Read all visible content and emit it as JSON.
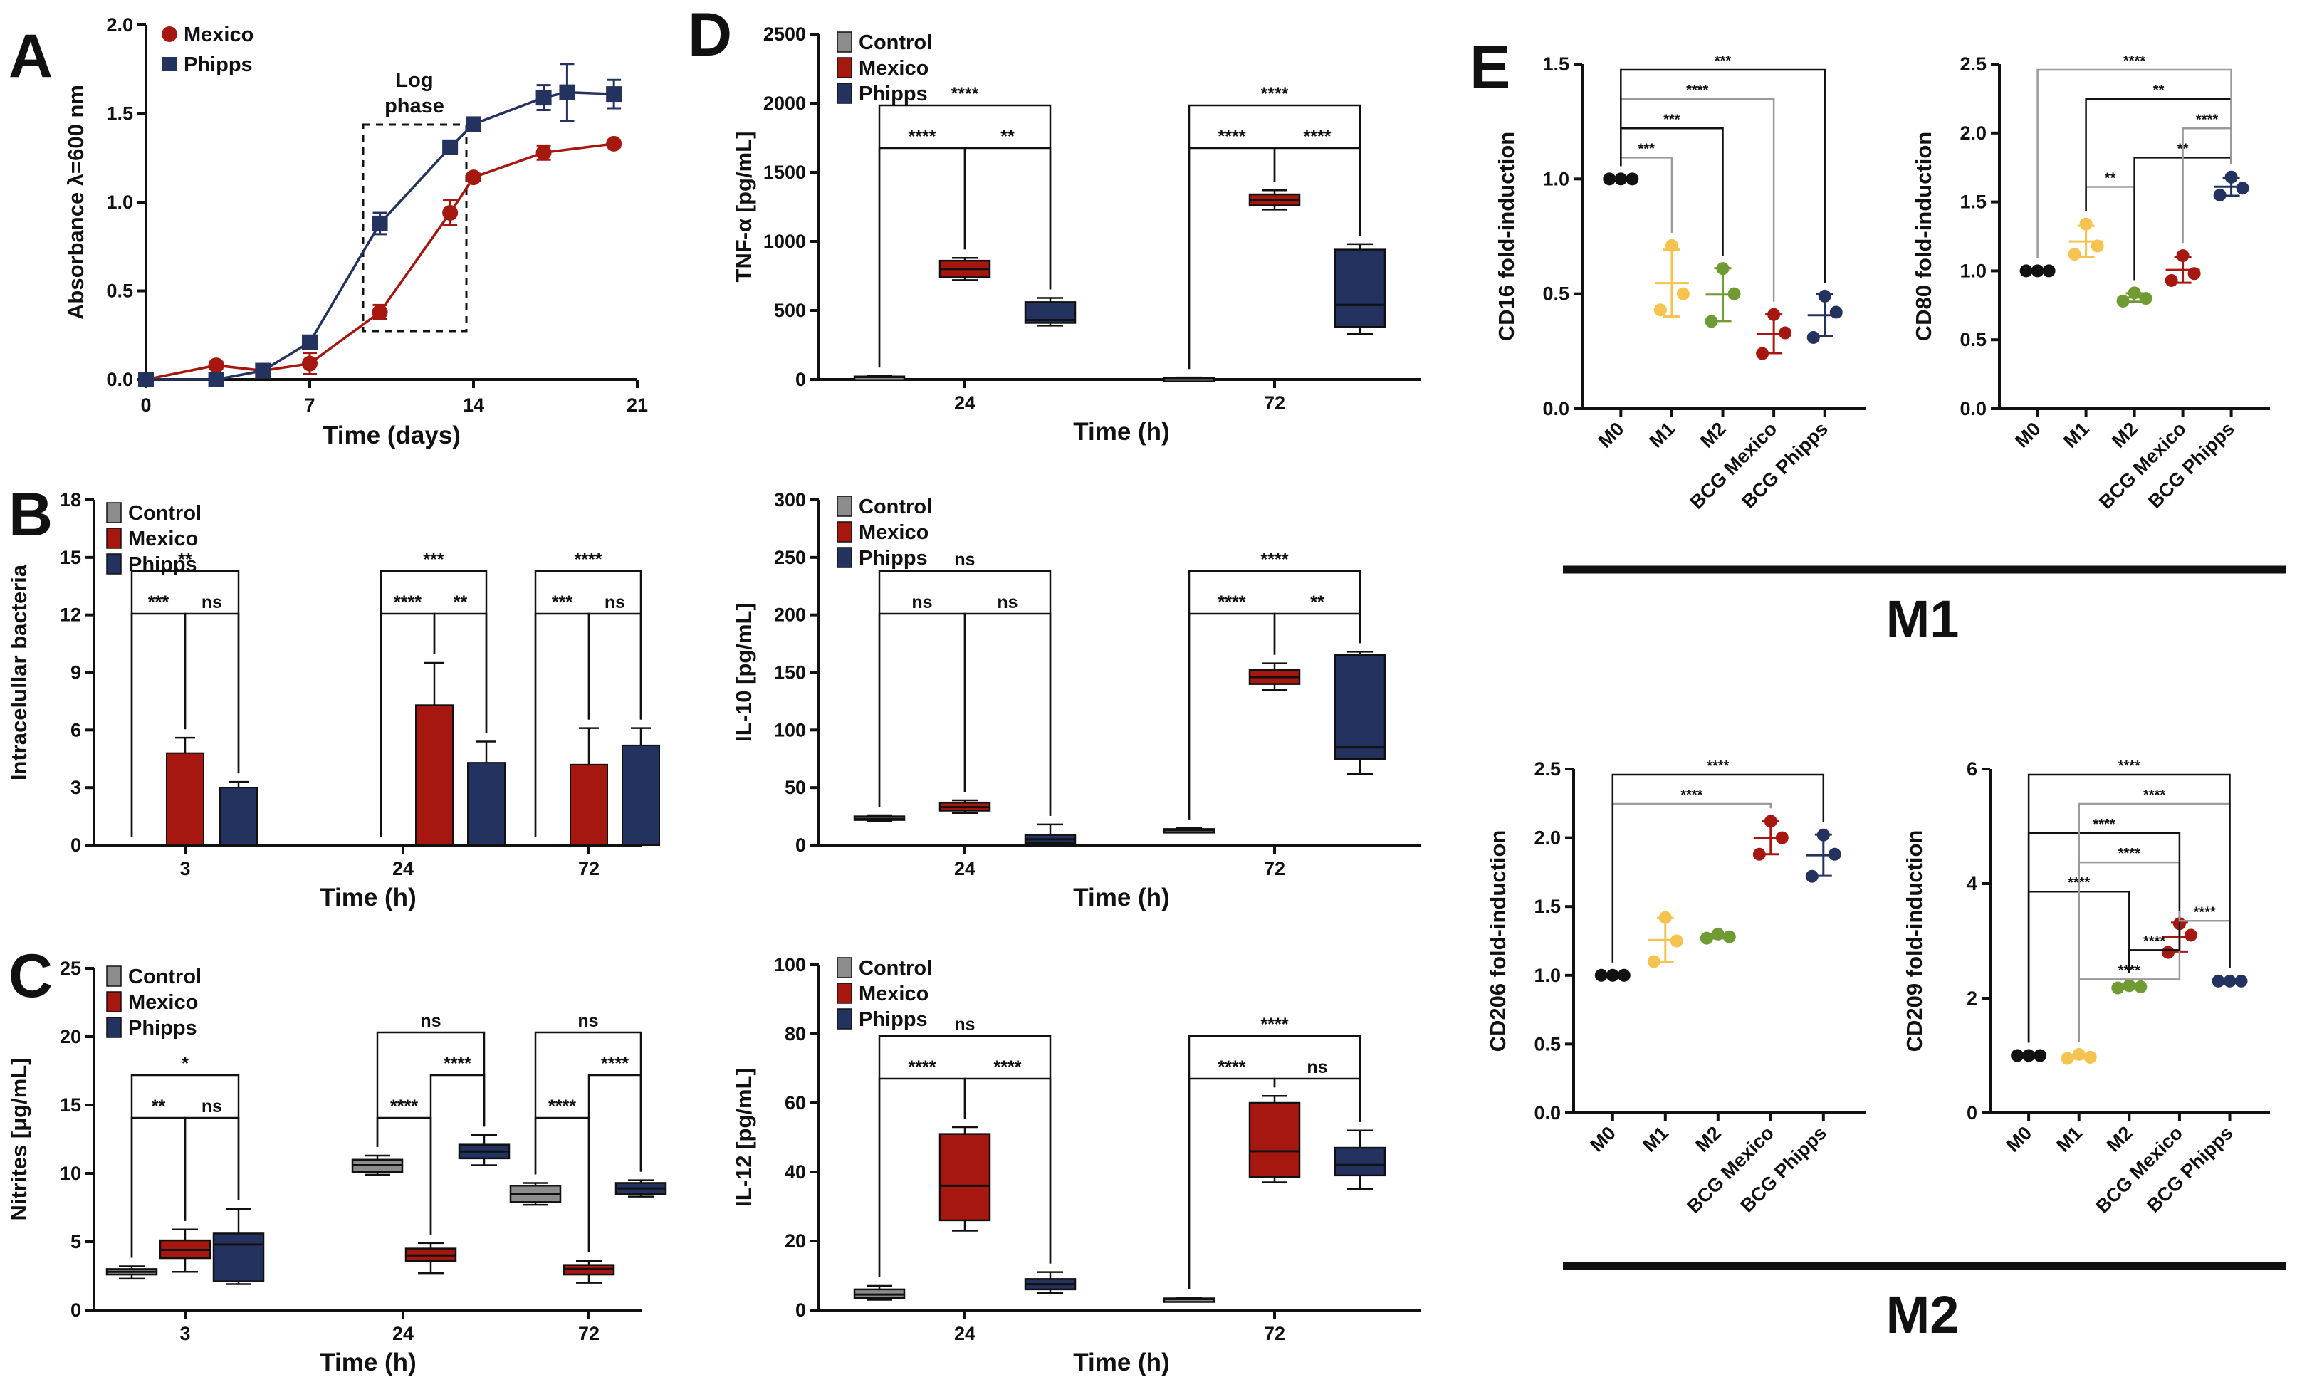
{
  "colors": {
    "control": "#8c8c8c",
    "mexico": "#a5170f",
    "phipps": "#23325f",
    "black": "#111111",
    "m1": "#f5c34f",
    "m2": "#6f9a34"
  },
  "labels": {
    "panel_a": "A",
    "panel_b": "B",
    "panel_c": "C",
    "panel_d": "D",
    "panel_e": "E",
    "legend_control": "Control",
    "legend_mexico": "Mexico",
    "legend_phipps": "Phipps",
    "log_phase_line1": "Log",
    "log_phase_line2": "phase",
    "m1_group": "M1",
    "m2_group": "M2"
  },
  "chart_data": [
    {
      "id": "A",
      "type": "line",
      "xlabel": "Time (days)",
      "ylabel": "Absorbance λ=600 nm",
      "xlim": [
        0,
        21
      ],
      "ylim": [
        0,
        2.0
      ],
      "xticks": [
        0,
        7,
        14,
        21
      ],
      "xtick_labels": [
        "0",
        "7",
        "14",
        "21"
      ],
      "yticks": [
        0,
        0.5,
        1.0,
        1.5,
        2.0
      ],
      "ytick_labels": [
        "0.0",
        "0.5",
        "1.0",
        "1.5",
        "2.0"
      ],
      "series": [
        {
          "name": "Mexico",
          "x": [
            0,
            3,
            5,
            7,
            10,
            13,
            14,
            17,
            20
          ],
          "y": [
            0.0,
            0.08,
            0.05,
            0.09,
            0.38,
            0.94,
            1.14,
            1.28,
            1.33
          ],
          "err": [
            0,
            0.02,
            0.01,
            0.06,
            0.04,
            0.07,
            0.02,
            0.04,
            0.02
          ]
        },
        {
          "name": "Phipps",
          "x": [
            0,
            3,
            5,
            7,
            10,
            13,
            14,
            17,
            18,
            20
          ],
          "y": [
            0.0,
            0.0,
            0.05,
            0.21,
            0.88,
            1.31,
            1.44,
            1.59,
            1.62,
            1.61
          ],
          "err": [
            0,
            0,
            0.01,
            0.02,
            0.06,
            0.03,
            0.03,
            0.07,
            0.16,
            0.08
          ]
        }
      ]
    },
    {
      "id": "B",
      "type": "bar",
      "xlabel": "Time (h)",
      "ylabel": "Intracelullar bacteria",
      "ylim": [
        0,
        18
      ],
      "yticks": [
        0,
        3,
        6,
        9,
        12,
        15,
        18
      ],
      "categories": [
        "3",
        "24",
        "72"
      ],
      "series": [
        {
          "name": "Control",
          "values": [
            0,
            0,
            0
          ],
          "err": [
            0,
            0,
            0
          ]
        },
        {
          "name": "Mexico",
          "values": [
            4.8,
            7.3,
            4.2
          ],
          "err": [
            0.8,
            2.2,
            1.9
          ]
        },
        {
          "name": "Phipps",
          "values": [
            3.0,
            4.3,
            5.2
          ],
          "err": [
            0.3,
            1.1,
            0.9
          ]
        }
      ],
      "significance": [
        {
          "group": "3",
          "a": 0,
          "b": 1,
          "label": "***",
          "level": 1
        },
        {
          "group": "3",
          "a": 1,
          "b": 2,
          "label": "ns",
          "level": 1
        },
        {
          "group": "3",
          "a": 0,
          "b": 2,
          "label": "**",
          "level": 2
        },
        {
          "group": "24",
          "a": 0,
          "b": 1,
          "label": "****",
          "level": 1
        },
        {
          "group": "24",
          "a": 1,
          "b": 2,
          "label": "**",
          "level": 1
        },
        {
          "group": "24",
          "a": 0,
          "b": 2,
          "label": "***",
          "level": 2
        },
        {
          "group": "72",
          "a": 0,
          "b": 1,
          "label": "***",
          "level": 1
        },
        {
          "group": "72",
          "a": 1,
          "b": 2,
          "label": "ns",
          "level": 1
        },
        {
          "group": "72",
          "a": 0,
          "b": 2,
          "label": "****",
          "level": 2
        }
      ]
    },
    {
      "id": "C",
      "type": "box",
      "xlabel": "Time (h)",
      "ylabel": "Nitrites [μg/mL]",
      "ylim": [
        0,
        25
      ],
      "yticks": [
        0,
        5,
        10,
        15,
        20,
        25
      ],
      "categories": [
        "3",
        "24",
        "72"
      ],
      "series": [
        {
          "name": "Control",
          "boxes": [
            [
              2.3,
              2.6,
              2.8,
              3.0,
              3.2
            ],
            [
              9.9,
              10.1,
              10.6,
              11.0,
              11.3
            ],
            [
              7.7,
              7.9,
              8.5,
              9.1,
              9.3
            ]
          ]
        },
        {
          "name": "Mexico",
          "boxes": [
            [
              2.8,
              3.8,
              4.4,
              5.1,
              5.9
            ],
            [
              2.7,
              3.6,
              4.0,
              4.5,
              4.9
            ],
            [
              2.0,
              2.6,
              3.0,
              3.3,
              3.6
            ]
          ]
        },
        {
          "name": "Phipps",
          "boxes": [
            [
              1.9,
              2.1,
              4.8,
              5.6,
              7.4
            ],
            [
              10.6,
              11.1,
              11.6,
              12.1,
              12.8
            ],
            [
              8.3,
              8.5,
              8.9,
              9.3,
              9.5
            ]
          ]
        }
      ],
      "significance": [
        {
          "group": "3",
          "a": 0,
          "b": 1,
          "label": "**",
          "level": 1
        },
        {
          "group": "3",
          "a": 1,
          "b": 2,
          "label": "ns",
          "level": 1
        },
        {
          "group": "3",
          "a": 0,
          "b": 2,
          "label": "*",
          "level": 2
        },
        {
          "group": "24",
          "a": 0,
          "b": 1,
          "label": "****",
          "level": 1
        },
        {
          "group": "24",
          "a": 1,
          "b": 2,
          "label": "****",
          "level": 2
        },
        {
          "group": "24",
          "a": 0,
          "b": 2,
          "label": "ns",
          "level": 3
        },
        {
          "group": "72",
          "a": 0,
          "b": 1,
          "label": "****",
          "level": 1
        },
        {
          "group": "72",
          "a": 1,
          "b": 2,
          "label": "****",
          "level": 2
        },
        {
          "group": "72",
          "a": 0,
          "b": 2,
          "label": "ns",
          "level": 3
        }
      ]
    },
    {
      "id": "D1",
      "type": "box",
      "xlabel": "Time (h)",
      "ylabel": "TNF-α [pg/mL]",
      "ylim": [
        0,
        2500
      ],
      "yticks": [
        0,
        500,
        1000,
        1500,
        2000,
        2500
      ],
      "categories": [
        "24",
        "72"
      ],
      "series": [
        {
          "name": "Control",
          "boxes": [
            [
              10,
              15,
              18,
              22,
              25
            ],
            [
              5,
              8,
              10,
              12,
              15
            ]
          ]
        },
        {
          "name": "Mexico",
          "boxes": [
            [
              720,
              740,
              800,
              860,
              880
            ],
            [
              1230,
              1260,
              1300,
              1340,
              1370
            ]
          ]
        },
        {
          "name": "Phipps",
          "boxes": [
            [
              390,
              410,
              430,
              560,
              590
            ],
            [
              330,
              380,
              540,
              940,
              980
            ]
          ]
        }
      ],
      "significance": [
        {
          "group": "24",
          "a": 0,
          "b": 1,
          "label": "****",
          "level": 1
        },
        {
          "group": "24",
          "a": 1,
          "b": 2,
          "label": "**",
          "level": 1
        },
        {
          "group": "24",
          "a": 0,
          "b": 2,
          "label": "****",
          "level": 2
        },
        {
          "group": "72",
          "a": 0,
          "b": 1,
          "label": "****",
          "level": 1
        },
        {
          "group": "72",
          "a": 1,
          "b": 2,
          "label": "****",
          "level": 1
        },
        {
          "group": "72",
          "a": 0,
          "b": 2,
          "label": "****",
          "level": 2
        }
      ]
    },
    {
      "id": "D2",
      "type": "box",
      "xlabel": "Time (h)",
      "ylabel": "IL-10 [pg/mL]",
      "ylim": [
        0,
        300
      ],
      "yticks": [
        0,
        50,
        100,
        150,
        200,
        250,
        300
      ],
      "categories": [
        "24",
        "72"
      ],
      "series": [
        {
          "name": "Control",
          "boxes": [
            [
              21,
              22,
              23,
              25,
              26
            ],
            [
              11,
              12,
              13,
              14,
              15
            ]
          ]
        },
        {
          "name": "Mexico",
          "boxes": [
            [
              28,
              30,
              33,
              37,
              39
            ],
            [
              135,
              140,
              146,
              152,
              158
            ]
          ]
        },
        {
          "name": "Phipps",
          "boxes": [
            [
              1,
              2,
              5,
              9,
              18
            ],
            [
              62,
              75,
              85,
              165,
              168
            ]
          ]
        }
      ],
      "significance": [
        {
          "group": "24",
          "a": 0,
          "b": 1,
          "label": "ns",
          "level": 1
        },
        {
          "group": "24",
          "a": 1,
          "b": 2,
          "label": "ns",
          "level": 1
        },
        {
          "group": "24",
          "a": 0,
          "b": 2,
          "label": "ns",
          "level": 2
        },
        {
          "group": "72",
          "a": 0,
          "b": 1,
          "label": "****",
          "level": 1
        },
        {
          "group": "72",
          "a": 1,
          "b": 2,
          "label": "**",
          "level": 1
        },
        {
          "group": "72",
          "a": 0,
          "b": 2,
          "label": "****",
          "level": 2
        }
      ]
    },
    {
      "id": "D3",
      "type": "box",
      "xlabel": "Time (h)",
      "ylabel": "IL-12 [pg/mL]",
      "ylim": [
        0,
        100
      ],
      "yticks": [
        0,
        20,
        40,
        60,
        80,
        100
      ],
      "categories": [
        "24",
        "72"
      ],
      "series": [
        {
          "name": "Control",
          "boxes": [
            [
              3,
              3.5,
              4.5,
              6,
              7
            ],
            [
              2.8,
              3,
              3.2,
              3.4,
              3.6
            ]
          ]
        },
        {
          "name": "Mexico",
          "boxes": [
            [
              23,
              26,
              36,
              51,
              53
            ],
            [
              37,
              38.5,
              46,
              60,
              62
            ]
          ]
        },
        {
          "name": "Phipps",
          "boxes": [
            [
              5,
              6,
              7.5,
              9,
              11
            ],
            [
              35,
              39,
              42,
              47,
              52
            ]
          ]
        }
      ],
      "significance": [
        {
          "group": "24",
          "a": 0,
          "b": 1,
          "label": "****",
          "level": 1
        },
        {
          "group": "24",
          "a": 1,
          "b": 2,
          "label": "****",
          "level": 1
        },
        {
          "group": "24",
          "a": 0,
          "b": 2,
          "label": "ns",
          "level": 2
        },
        {
          "group": "72",
          "a": 0,
          "b": 1,
          "label": "****",
          "level": 1
        },
        {
          "group": "72",
          "a": 1,
          "b": 2,
          "label": "ns",
          "level": 1
        },
        {
          "group": "72",
          "a": 0,
          "b": 2,
          "label": "****",
          "level": 2
        }
      ]
    },
    {
      "id": "E1",
      "type": "scatter",
      "ylabel": "CD16 fold-induction",
      "ylim": [
        0,
        1.5
      ],
      "yticks": [
        0,
        0.5,
        1.0,
        1.5
      ],
      "categories": [
        "M0",
        "M1",
        "M2",
        "BCG Mexico",
        "BCG Phipps"
      ],
      "points": [
        [
          1.0,
          1.0,
          1.0
        ],
        [
          0.71,
          0.5,
          0.43
        ],
        [
          0.61,
          0.5,
          0.38
        ],
        [
          0.41,
          0.33,
          0.24
        ],
        [
          0.49,
          0.42,
          0.31
        ]
      ],
      "significance": [
        {
          "a": 0,
          "b": 1,
          "label": "***"
        },
        {
          "a": 0,
          "b": 2,
          "label": "***"
        },
        {
          "a": 0,
          "b": 3,
          "label": "****"
        },
        {
          "a": 0,
          "b": 4,
          "label": "***"
        }
      ]
    },
    {
      "id": "E2",
      "type": "scatter",
      "ylabel": "CD80 fold-induction",
      "ylim": [
        0,
        2.5
      ],
      "yticks": [
        0,
        0.5,
        1.0,
        1.5,
        2.0,
        2.5
      ],
      "categories": [
        "M0",
        "M1",
        "M2",
        "BCG Mexico",
        "BCG Phipps"
      ],
      "points": [
        [
          1.0,
          1.0,
          1.0
        ],
        [
          1.34,
          1.18,
          1.12
        ],
        [
          0.84,
          0.8,
          0.78
        ],
        [
          1.11,
          0.98,
          0.93
        ],
        [
          1.68,
          1.6,
          1.55
        ]
      ],
      "significance": [
        {
          "a": 2,
          "b": 1,
          "label": "**"
        },
        {
          "a": 2,
          "b": 4,
          "label": "**"
        },
        {
          "a": 3,
          "b": 4,
          "label": "****"
        },
        {
          "a": 1,
          "b": 4,
          "label": "**"
        },
        {
          "a": 0,
          "b": 4,
          "label": "****"
        }
      ]
    },
    {
      "id": "E3",
      "type": "scatter",
      "ylabel": "CD206 fold-induction",
      "ylim": [
        0,
        2.5
      ],
      "yticks": [
        0,
        0.5,
        1.0,
        1.5,
        2.0,
        2.5
      ],
      "categories": [
        "M0",
        "M1",
        "M2",
        "BCG Mexico",
        "BCG Phipps"
      ],
      "points": [
        [
          1.0,
          1.0,
          1.0
        ],
        [
          1.42,
          1.25,
          1.1
        ],
        [
          1.3,
          1.28,
          1.27
        ],
        [
          2.12,
          2.0,
          1.88
        ],
        [
          2.02,
          1.88,
          1.72
        ]
      ],
      "significance": [
        {
          "a": 0,
          "b": 3,
          "label": "****"
        },
        {
          "a": 0,
          "b": 4,
          "label": "****"
        }
      ]
    },
    {
      "id": "E4",
      "type": "scatter",
      "ylabel": "CD209 fold-induction",
      "ylim": [
        0,
        6
      ],
      "yticks": [
        0,
        2,
        4,
        6
      ],
      "categories": [
        "M0",
        "M1",
        "M2",
        "BCG Mexico",
        "BCG Phipps"
      ],
      "points": [
        [
          1.0,
          1.0,
          1.0
        ],
        [
          1.02,
          0.97,
          0.95
        ],
        [
          2.22,
          2.2,
          2.18
        ],
        [
          3.3,
          3.1,
          2.8
        ],
        [
          2.3,
          2.3,
          2.3
        ]
      ],
      "significance": [
        {
          "a": 1,
          "b": 3,
          "label": "****"
        },
        {
          "a": 2,
          "b": 3,
          "label": "****"
        },
        {
          "a": 3,
          "b": 4,
          "label": "****"
        },
        {
          "a": 0,
          "b": 2,
          "label": "****"
        },
        {
          "a": 1,
          "b": 3,
          "label": "****"
        },
        {
          "a": 0,
          "b": 3,
          "label": "****"
        },
        {
          "a": 1,
          "b": 4,
          "label": "****"
        },
        {
          "a": 0,
          "b": 4,
          "label": "****"
        }
      ]
    }
  ]
}
